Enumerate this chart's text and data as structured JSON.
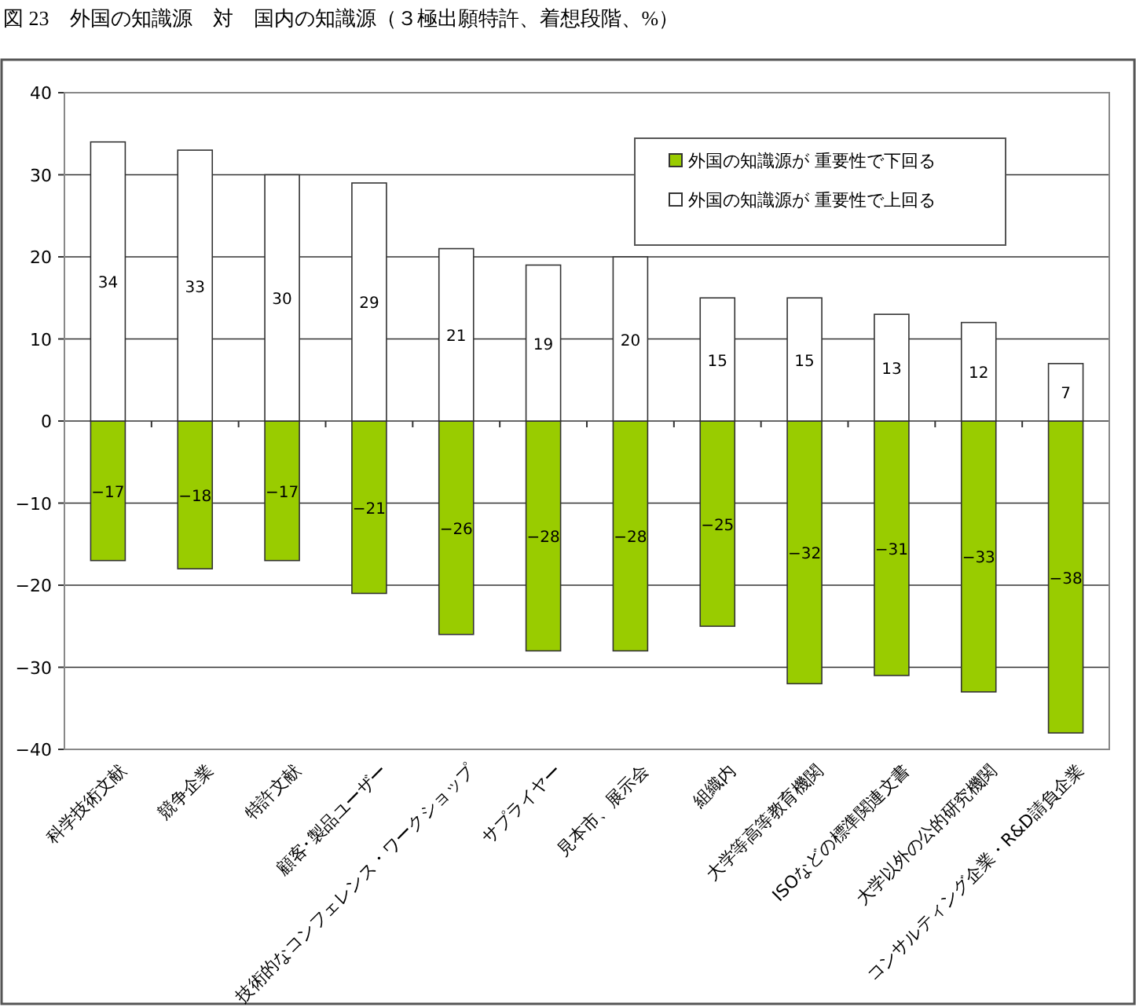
{
  "chart_data": {
    "type": "bar",
    "title": "図 23　外国の知識源　対　国内の知識源（３極出願特許、着想段階、%）",
    "categories": [
      "科学技術文献",
      "競争企業",
      "特許文献",
      "顧客･製品ユーザー",
      "技術的なコンフェレンス・ワークショップ",
      "サプライヤー",
      "見本市、展示会",
      "組織内",
      "大学等高等教育機関",
      "ISOなどの標準関連文書",
      "大学以外の公的研究機関",
      "コンサルティング企業・R&D請負企業"
    ],
    "series": [
      {
        "name": "外国の知識源が 重要性で下回る",
        "color": "#99cc00",
        "values": [
          -17,
          -18,
          -17,
          -21,
          -26,
          -28,
          -28,
          -25,
          -32,
          -31,
          -33,
          -38
        ],
        "value_labels": [
          "−17",
          "−18",
          "−17",
          "−21",
          "−26",
          "−28",
          "−28",
          "−25",
          "−32",
          "−31",
          "−33",
          "−38"
        ]
      },
      {
        "name": "外国の知識源が 重要性で上回る",
        "color": "#ffffff",
        "values": [
          34,
          33,
          30,
          29,
          21,
          19,
          20,
          15,
          15,
          13,
          12,
          7
        ],
        "value_labels": [
          "34",
          "33",
          "30",
          "29",
          "21",
          "19",
          "20",
          "15",
          "15",
          "13",
          "12",
          "7"
        ]
      }
    ],
    "ylim": [
      -40,
      40
    ],
    "yticks": [
      {
        "value": -40,
        "label": "−40"
      },
      {
        "value": -30,
        "label": "−30"
      },
      {
        "value": -20,
        "label": "−20"
      },
      {
        "value": -10,
        "label": "−10"
      },
      0,
      10,
      20,
      30,
      40
    ],
    "stacked": true,
    "grid": "y",
    "legend": "top right"
  }
}
